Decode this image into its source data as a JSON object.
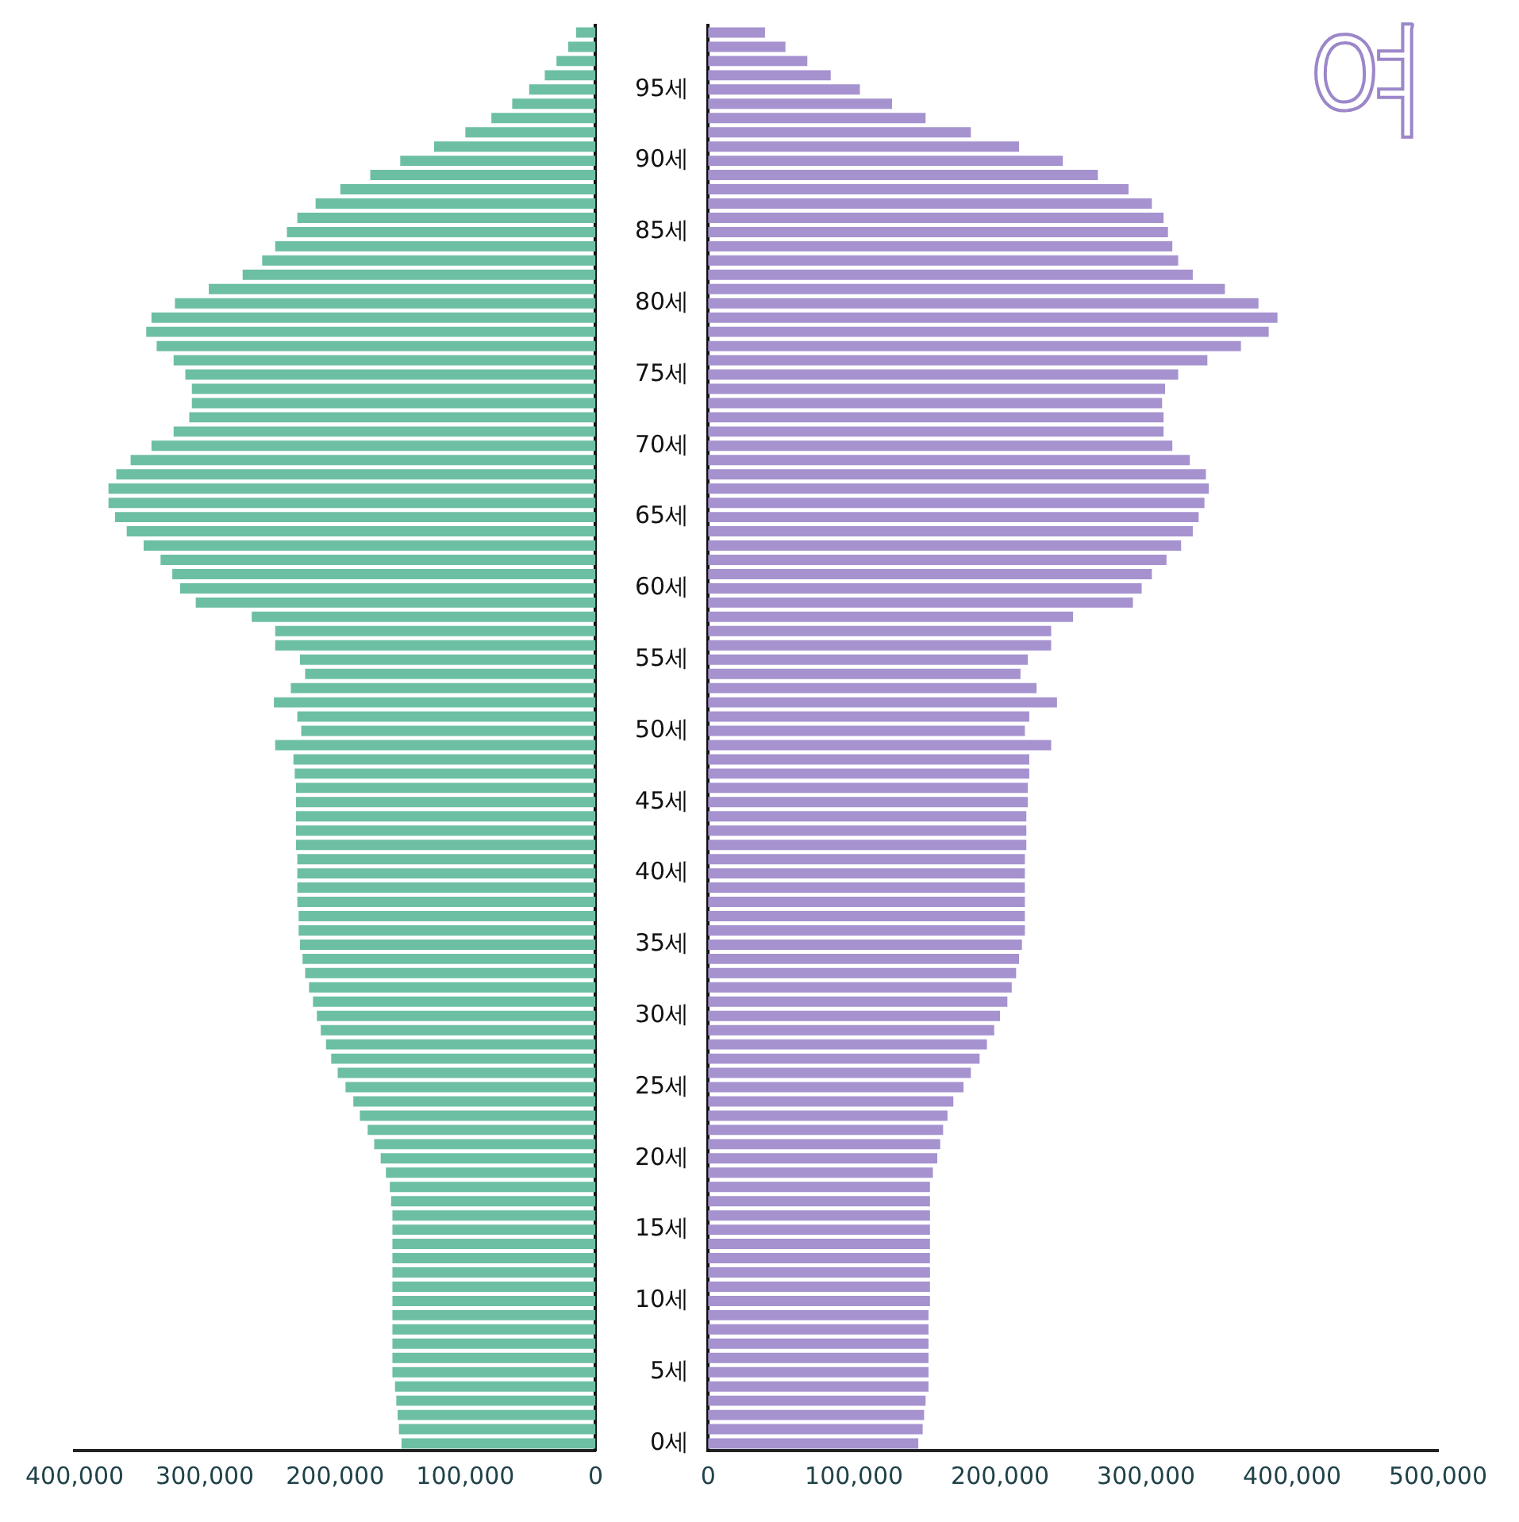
{
  "chart_data": [
    {
      "type": "bar",
      "orientation": "horizontal",
      "tick_labels": "x",
      "categories": [
        null,
        null,
        null,
        null,
        null,
        null,
        null,
        null,
        null,
        null,
        null,
        null,
        null,
        null,
        null,
        null,
        null,
        null,
        null,
        null,
        null,
        null,
        null,
        null,
        null,
        null,
        null,
        null,
        null,
        null,
        null,
        null,
        null,
        null,
        null,
        null,
        null,
        null,
        null,
        null,
        null,
        null,
        null,
        null,
        null,
        null,
        null,
        null,
        null,
        null,
        null,
        null,
        null,
        null,
        null,
        null,
        null,
        null,
        null,
        null,
        null,
        null,
        null,
        null,
        null,
        null,
        null,
        null,
        null,
        null,
        null,
        null,
        null,
        null,
        null,
        null,
        null,
        null,
        null,
        null,
        null,
        null,
        null,
        null,
        null,
        null,
        null,
        null,
        null,
        null,
        null,
        null,
        null,
        null,
        null,
        null,
        null,
        null,
        null,
        null
      ],
      "series": [
        {
          "color": "#6dbfa3",
          "values": [
            15000,
            21000,
            30000,
            39000,
            51000,
            64000,
            80000,
            100000,
            124000,
            150000,
            173000,
            196000,
            215000,
            229000,
            237000,
            246000,
            256000,
            271000,
            297000,
            323000,
            341000,
            345000,
            337000,
            324000,
            315000,
            310000,
            310000,
            312000,
            324000,
            341000,
            357000,
            368000,
            374000,
            374000,
            369000,
            360000,
            347000,
            334000,
            325000,
            319000,
            307000,
            264000,
            246000,
            246000,
            227000,
            223000,
            234000,
            247000,
            229000,
            226000,
            246000,
            232000,
            231000,
            230000,
            230000,
            230000,
            230000,
            230000,
            229000,
            229000,
            229000,
            229000,
            228000,
            228000,
            227000,
            225000,
            223000,
            220000,
            217000,
            214000,
            211000,
            207000,
            203000,
            198000,
            192000,
            186000,
            181000,
            175000,
            170000,
            165000,
            161000,
            158000,
            157000,
            156000,
            156000,
            156000,
            156000,
            156000,
            156000,
            156000,
            156000,
            156000,
            156000,
            156000,
            156000,
            154000,
            153000,
            152000,
            151000,
            149000
          ]
        }
      ],
      "xlim": [
        400000,
        0
      ],
      "xticks": [
        {
          "value": 400000,
          "label": "400,000"
        },
        {
          "value": 300000,
          "label": "300,000"
        },
        {
          "value": 200000,
          "label": "200,000"
        },
        {
          "value": 100000,
          "label": "100,000"
        },
        0
      ]
    },
    {
      "type": "bar",
      "orientation": "horizontal",
      "title": "여",
      "categories": [
        null,
        null,
        null,
        null,
        "95세",
        null,
        null,
        null,
        null,
        "90세",
        null,
        null,
        null,
        null,
        "85세",
        null,
        null,
        null,
        null,
        "80세",
        null,
        null,
        null,
        null,
        "75세",
        null,
        null,
        null,
        null,
        "70세",
        null,
        null,
        null,
        null,
        "65세",
        null,
        null,
        null,
        null,
        "60세",
        null,
        null,
        null,
        null,
        "55세",
        null,
        null,
        null,
        null,
        "50세",
        null,
        null,
        null,
        null,
        "45세",
        null,
        null,
        null,
        null,
        "40세",
        null,
        null,
        null,
        null,
        "35세",
        null,
        null,
        null,
        null,
        "30세",
        null,
        null,
        null,
        null,
        "25세",
        null,
        null,
        null,
        null,
        "20세",
        null,
        null,
        null,
        null,
        "15세",
        null,
        null,
        null,
        null,
        "10세",
        null,
        null,
        null,
        null,
        "5세",
        null,
        null,
        null,
        null,
        "0세"
      ],
      "series": [
        {
          "color": "#a592cf",
          "values": [
            39000,
            53000,
            68000,
            84000,
            104000,
            126000,
            149000,
            180000,
            213000,
            243000,
            267000,
            288000,
            304000,
            312000,
            315000,
            318000,
            322000,
            332000,
            354000,
            377000,
            390000,
            384000,
            365000,
            342000,
            322000,
            313000,
            311000,
            312000,
            312000,
            318000,
            330000,
            341000,
            343000,
            340000,
            336000,
            332000,
            324000,
            314000,
            304000,
            297000,
            291000,
            250000,
            235000,
            235000,
            219000,
            214000,
            225000,
            239000,
            220000,
            217000,
            235000,
            220000,
            220000,
            219000,
            219000,
            218000,
            218000,
            218000,
            217000,
            217000,
            217000,
            217000,
            217000,
            217000,
            215000,
            213000,
            211000,
            208000,
            205000,
            200000,
            196000,
            191000,
            186000,
            180000,
            175000,
            168000,
            164000,
            161000,
            159000,
            157000,
            154000,
            152000,
            152000,
            152000,
            152000,
            152000,
            152000,
            152000,
            152000,
            152000,
            151000,
            151000,
            151000,
            151000,
            151000,
            151000,
            149000,
            148000,
            147000,
            144000
          ]
        }
      ],
      "xlim": [
        0,
        500000
      ],
      "xticks": [
        0,
        {
          "value": 100000,
          "label": "100,000"
        },
        {
          "value": 200000,
          "label": "200,000"
        },
        {
          "value": 300000,
          "label": "300,000"
        },
        {
          "value": 400000,
          "label": "400,000"
        },
        {
          "value": 500000,
          "label": "500,000"
        }
      ]
    }
  ]
}
